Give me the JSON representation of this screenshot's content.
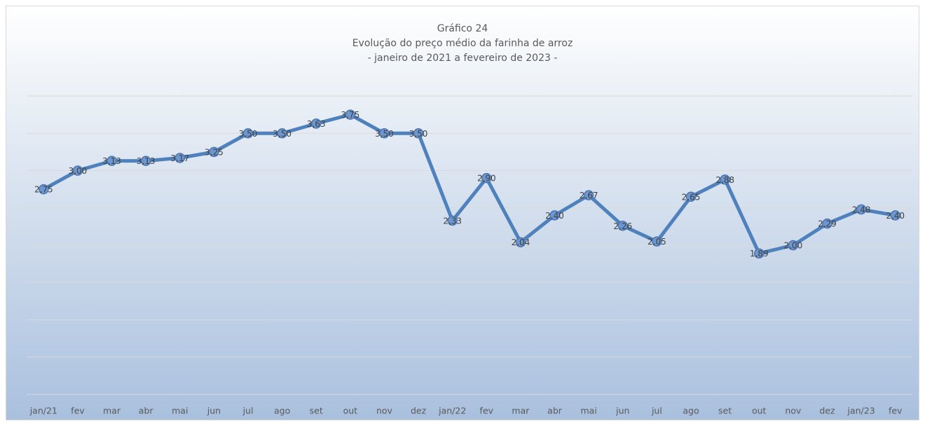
{
  "chart_data": {
    "type": "line",
    "title_lines": [
      "Gráfico 24",
      "Evolução do preço médio da farinha de arroz",
      "- janeiro de 2021 a fevereiro de 2023 -"
    ],
    "categories": [
      "jan/21",
      "fev",
      "mar",
      "abr",
      "mai",
      "jun",
      "jul",
      "ago",
      "set",
      "out",
      "nov",
      "dez",
      "jan/22",
      "fev",
      "mar",
      "abr",
      "mai",
      "jun",
      "jul",
      "ago",
      "set",
      "out",
      "nov",
      "dez",
      "jan/23",
      "fev"
    ],
    "series": [
      {
        "name": "Preço médio",
        "color": "#4f81bd",
        "values": [
          2.75,
          3.0,
          3.13,
          3.13,
          3.17,
          3.25,
          3.5,
          3.5,
          3.63,
          3.75,
          3.5,
          3.5,
          2.33,
          2.9,
          2.04,
          2.4,
          2.67,
          2.26,
          2.05,
          2.65,
          2.88,
          1.89,
          2.0,
          2.29,
          2.48,
          2.4
        ],
        "value_labels": [
          "2,75",
          "3,00",
          "3,13",
          "3,13",
          "3,17",
          "3,25",
          "3,50",
          "3,50",
          "3,63",
          "3,75",
          "3,50",
          "3,50",
          "2,33",
          "2,90",
          "2,04",
          "2,40",
          "2,67",
          "2,26",
          "2,05",
          "2,65",
          "2,88",
          "1,89",
          "2,00",
          "2,29",
          "2,48",
          "2,40"
        ]
      }
    ],
    "ylim": [
      0,
      4
    ],
    "yticks": [
      0,
      0.5,
      1,
      1.5,
      2,
      2.5,
      3,
      3.5,
      4
    ],
    "grid": true
  }
}
